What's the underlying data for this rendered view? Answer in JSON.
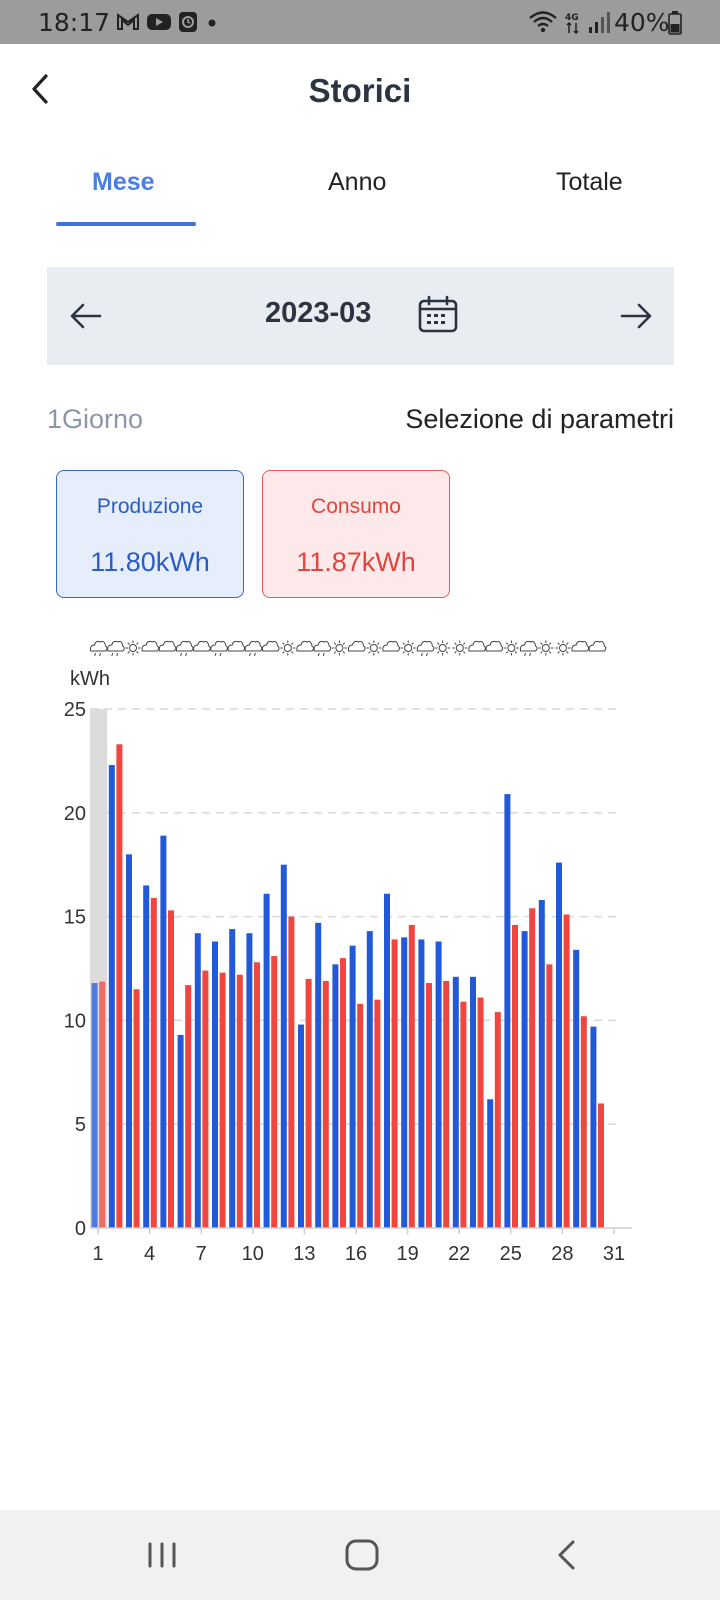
{
  "status_bar": {
    "time": "18:17",
    "battery": "40%",
    "icons": [
      "gmail-icon",
      "youtube-icon",
      "clock-app-icon",
      "dot-icon",
      "wifi-icon",
      "lte-4g-icon",
      "signal-icon",
      "battery-icon"
    ]
  },
  "header": {
    "title": "Storici",
    "back_icon": "chevron-left-icon"
  },
  "tabs": [
    {
      "label": "Mese",
      "active": true
    },
    {
      "label": "Anno",
      "active": false
    },
    {
      "label": "Totale",
      "active": false
    }
  ],
  "date_selector": {
    "value": "2023-03",
    "prev_icon": "arrow-left-icon",
    "next_icon": "arrow-right-icon",
    "calendar_icon": "calendar-icon"
  },
  "info_row": {
    "period": "1Giorno",
    "parameters": "Selezione di parametri"
  },
  "cards": {
    "production": {
      "label": "Produzione",
      "value": "11.80kWh"
    },
    "consumption": {
      "label": "Consumo",
      "value": "11.87kWh"
    }
  },
  "colors": {
    "accent": "#3b72e0",
    "production": "#2159d8",
    "consumption": "#f0463f",
    "highlight": "#dcdcdc",
    "grid": "#d9d9d9"
  },
  "chart_data": {
    "type": "bar",
    "ylabel": "kWh",
    "ylim": [
      0,
      25
    ],
    "yticks": [
      0,
      5,
      10,
      15,
      20,
      25
    ],
    "x_tick_labels": [
      "1",
      "4",
      "7",
      "10",
      "13",
      "16",
      "19",
      "22",
      "25",
      "28",
      "31"
    ],
    "categories": [
      1,
      2,
      3,
      4,
      5,
      6,
      7,
      8,
      9,
      10,
      11,
      12,
      13,
      14,
      15,
      16,
      17,
      18,
      19,
      20,
      21,
      22,
      23,
      24,
      25,
      26,
      27,
      28,
      29,
      30
    ],
    "highlighted_day": 1,
    "weather_icons": [
      "cloud-rain",
      "cloud-rain",
      "sun",
      "cloud",
      "cloud",
      "cloud-rain",
      "cloud",
      "cloud-rain",
      "cloud",
      "cloud-rain",
      "cloud",
      "sun",
      "cloud",
      "cloud-rain",
      "sun",
      "cloud",
      "sun",
      "cloud",
      "sun",
      "cloud-rain",
      "sun",
      "sun",
      "cloud",
      "cloud",
      "sun",
      "cloud-rain",
      "sun",
      "sun",
      "cloud",
      "cloud"
    ],
    "series": [
      {
        "values": [
          11.8,
          22.3,
          18.0,
          16.5,
          18.9,
          9.3,
          14.2,
          13.8,
          14.4,
          14.2,
          16.1,
          17.5,
          9.8,
          14.7,
          12.7,
          13.6,
          14.3,
          16.1,
          14.0,
          13.9,
          13.8,
          12.1,
          12.1,
          6.2,
          20.9,
          14.3,
          15.8,
          17.6,
          13.4,
          9.7
        ]
      },
      {
        "values": [
          11.87,
          23.3,
          11.5,
          15.9,
          15.3,
          11.7,
          12.4,
          12.3,
          12.2,
          12.8,
          13.1,
          15.0,
          12.0,
          11.9,
          13.0,
          10.8,
          11.0,
          13.9,
          14.6,
          11.8,
          11.9,
          10.9,
          11.1,
          10.4,
          14.6,
          15.4,
          12.7,
          15.1,
          10.2,
          6.0
        ]
      }
    ]
  }
}
